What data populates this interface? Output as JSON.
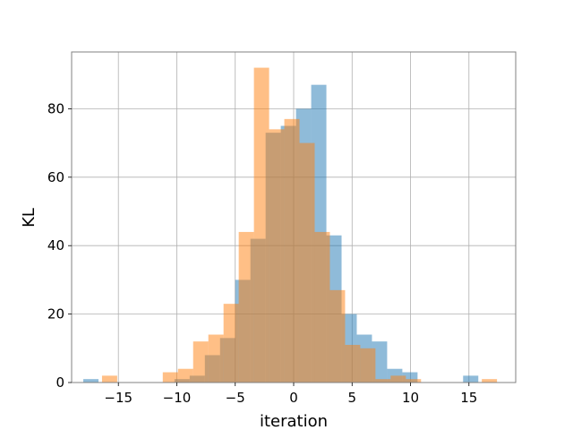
{
  "chart_data": {
    "type": "bar",
    "title": "",
    "xlabel": "iteration",
    "ylabel": "KL",
    "xlim": [
      -19.0,
      19.0
    ],
    "ylim": [
      0,
      96.6
    ],
    "xticks": [
      -15,
      -10,
      -5,
      0,
      5,
      10,
      15
    ],
    "yticks": [
      0,
      20,
      40,
      60,
      80
    ],
    "grid": true,
    "colors": {
      "blue": "#1f77b4",
      "orange": "#ff7f0e",
      "alpha": "0.5"
    },
    "series": [
      {
        "edges": [
          -18.0,
          -16.7,
          -15.4,
          -14.1,
          -12.8,
          -11.5,
          -10.2,
          -8.9,
          -7.6,
          -6.3,
          -5.0,
          -3.7,
          -2.4,
          -1.1,
          0.2,
          1.5,
          2.8,
          4.1,
          5.4,
          6.7,
          8.0,
          9.3,
          10.6,
          11.9,
          13.2,
          14.5,
          15.8
        ],
        "values": [
          1,
          0,
          0,
          0,
          0,
          0,
          1,
          2,
          8,
          13,
          30,
          42,
          73,
          75,
          80,
          87,
          43,
          20,
          14,
          12,
          4,
          3,
          0,
          0,
          0,
          2
        ]
      },
      {
        "edges": [
          -16.4,
          -15.1,
          -13.8,
          -12.5,
          -11.2,
          -9.9,
          -8.6,
          -7.3,
          -6.0,
          -4.7,
          -3.4,
          -2.1,
          -0.8,
          0.5,
          1.8,
          3.1,
          4.4,
          5.7,
          7.0,
          8.3,
          9.6,
          10.9,
          12.2,
          13.5,
          14.8,
          16.1,
          17.4
        ],
        "values": [
          2,
          0,
          0,
          0,
          3,
          4,
          12,
          14,
          23,
          44,
          92,
          74,
          77,
          70,
          44,
          27,
          11,
          10,
          1,
          2,
          1,
          0,
          0,
          0,
          0,
          1
        ]
      }
    ]
  }
}
